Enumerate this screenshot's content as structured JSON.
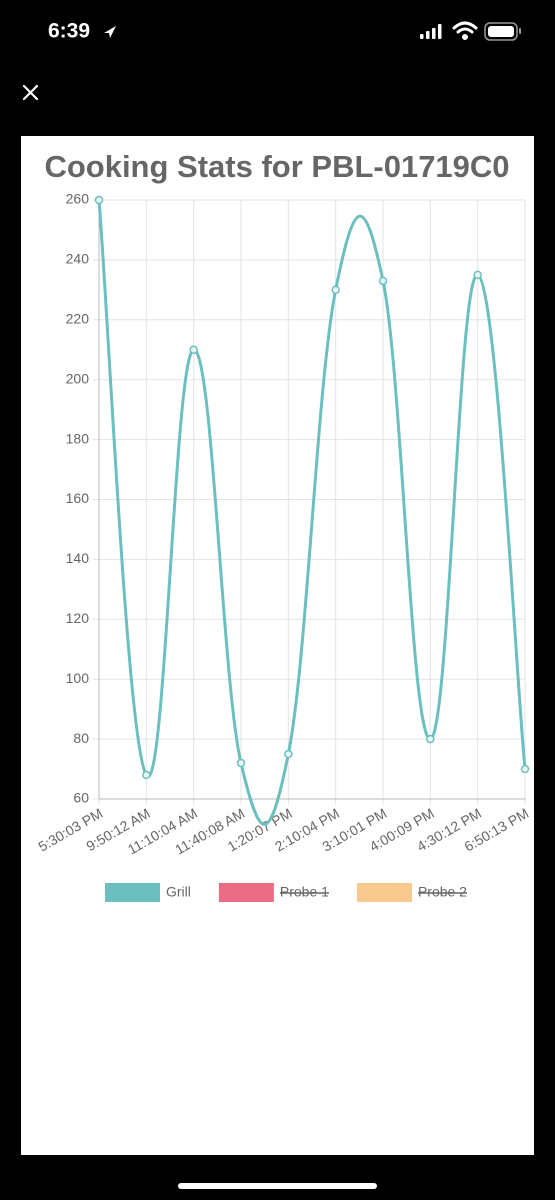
{
  "status_bar": {
    "time": "6:39"
  },
  "chart_data": {
    "type": "line",
    "title": "Cooking Stats for PBL-01719C0",
    "categories": [
      "5:30:03 PM",
      "9:50:12 AM",
      "11:10:04 AM",
      "11:40:08 AM",
      "1:20:07 PM",
      "2:10:04 PM",
      "3:10:01 PM",
      "4:00:09 PM",
      "4:30:12 PM",
      "6:50:13 PM"
    ],
    "series": [
      {
        "name": "Grill",
        "color": "#6bbfbf",
        "values": [
          260,
          68,
          210,
          72,
          75,
          230,
          233,
          80,
          235,
          70
        ]
      },
      {
        "name": "Probe 1",
        "color": "#ec6c86",
        "hidden": true,
        "values": [
          null,
          null,
          null,
          null,
          null,
          null,
          null,
          null,
          null,
          null
        ]
      },
      {
        "name": "Probe 2",
        "color": "#f7c98c",
        "hidden": true,
        "values": [
          null,
          null,
          null,
          null,
          null,
          null,
          null,
          null,
          null,
          null
        ]
      }
    ],
    "ylim": [
      60,
      260
    ],
    "yticks": [
      60,
      80,
      100,
      120,
      140,
      160,
      180,
      200,
      220,
      240,
      260
    ],
    "grid": true
  }
}
